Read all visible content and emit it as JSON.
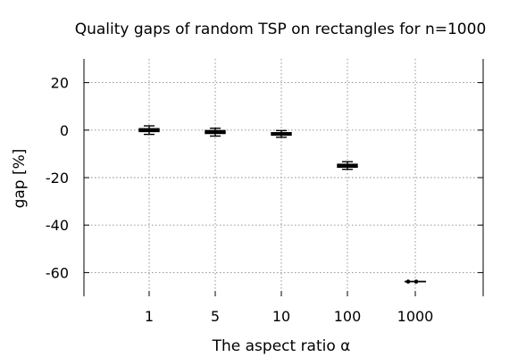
{
  "chart_data": {
    "type": "box",
    "title": "Quality gaps of random TSP on rectangles for n=1000",
    "xlabel": "The aspect ratio α",
    "ylabel": "gap [%]",
    "ylim": [
      -70,
      30
    ],
    "yticks": [
      20,
      0,
      -20,
      -40,
      -60
    ],
    "grid": true,
    "categories": [
      "1",
      "5",
      "10",
      "100",
      "1000"
    ],
    "series": [
      {
        "boxes": [
          {
            "category": "1",
            "whisker_low": -1.8,
            "q1": -0.6,
            "median": 0.0,
            "q3": 0.6,
            "whisker_high": 1.8
          },
          {
            "category": "5",
            "whisker_low": -2.5,
            "q1": -1.4,
            "median": -0.8,
            "q3": -0.2,
            "whisker_high": 0.8
          },
          {
            "category": "10",
            "whisker_low": -3.0,
            "q1": -2.1,
            "median": -1.6,
            "q3": -1.1,
            "whisker_high": -0.2
          },
          {
            "category": "100",
            "whisker_low": -16.5,
            "q1": -15.6,
            "median": -15.0,
            "q3": -14.4,
            "whisker_high": -13.3
          },
          {
            "category": "1000",
            "whisker_low": -63.8,
            "q1": -63.8,
            "median": -63.8,
            "q3": -63.8,
            "whisker_high": -63.8,
            "points": [
              -63.8,
              -63.8
            ]
          }
        ]
      }
    ]
  }
}
